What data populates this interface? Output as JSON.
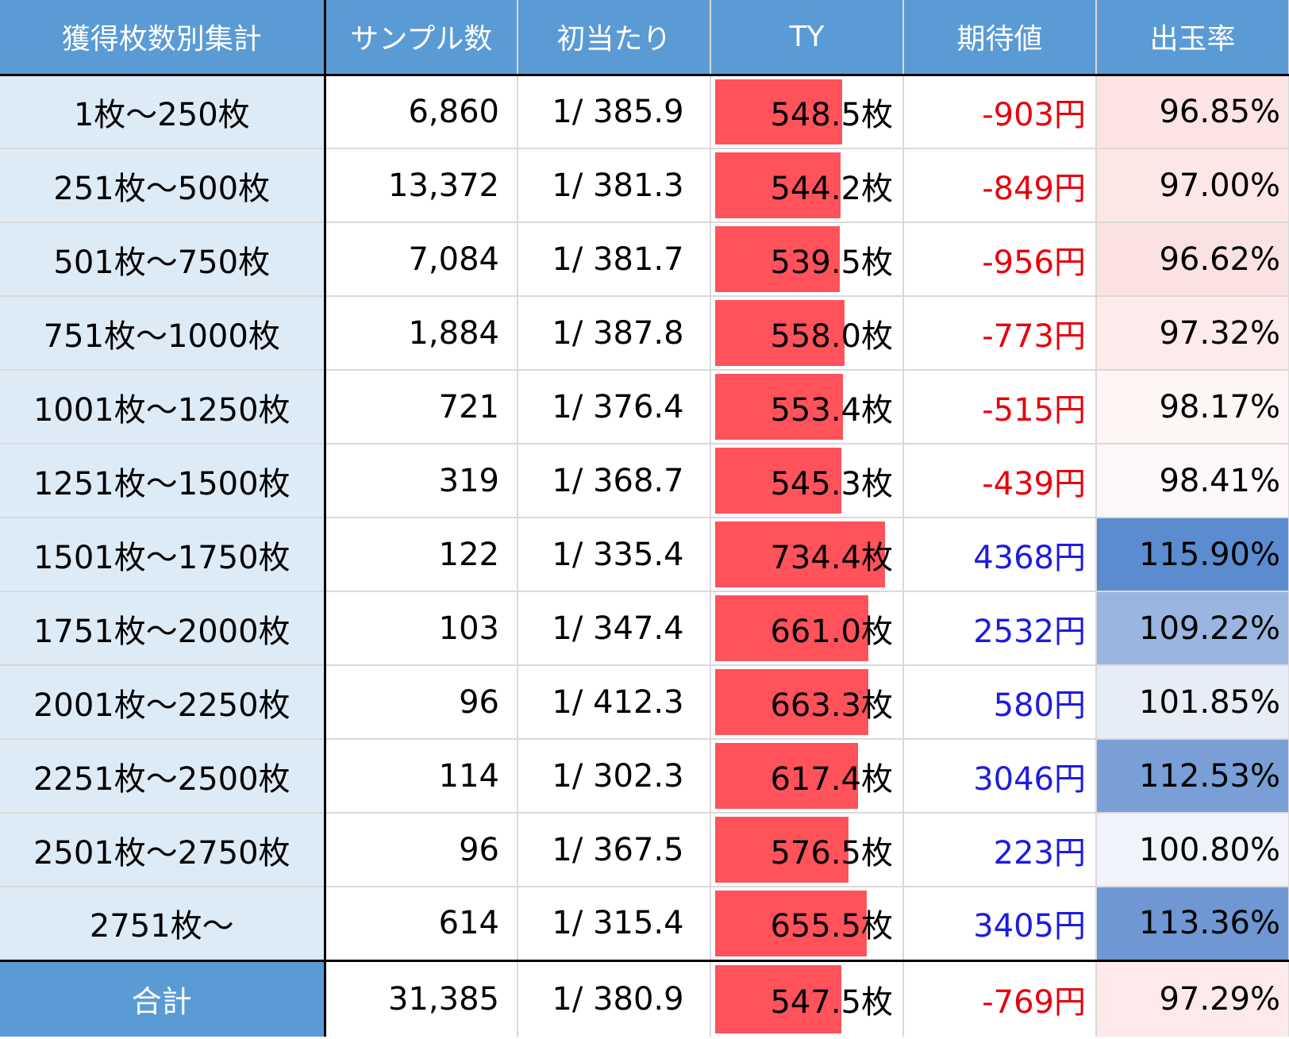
{
  "table": {
    "headers": [
      "獲得枚数別集計",
      "サンプル数",
      "初当たり",
      "TY",
      "期待値",
      "出玉率"
    ],
    "rows": [
      {
        "range": "1枚～250枚",
        "samples": "6,860",
        "first_hit": "1/ 385.9",
        "ty": "548.5枚",
        "ty_value": 548.5,
        "ev": "-903円",
        "rate": "96.85%",
        "ev_color": "#e8000b",
        "rate_bg": "#fce4e4"
      },
      {
        "range": "251枚～500枚",
        "samples": "13,372",
        "first_hit": "1/ 381.3",
        "ty": "544.2枚",
        "ty_value": 544.2,
        "ev": "-849円",
        "rate": "97.00%",
        "ev_color": "#e8000b",
        "rate_bg": "#fce6e6"
      },
      {
        "range": "501枚～750枚",
        "samples": "7,084",
        "first_hit": "1/ 381.7",
        "ty": "539.5枚",
        "ty_value": 539.5,
        "ev": "-956円",
        "rate": "96.62%",
        "ev_color": "#e8000b",
        "rate_bg": "#fbe2e2"
      },
      {
        "range": "751枚～1000枚",
        "samples": "1,884",
        "first_hit": "1/ 387.8",
        "ty": "558.0枚",
        "ty_value": 558.0,
        "ev": "-773円",
        "rate": "97.32%",
        "ev_color": "#e8000b",
        "rate_bg": "#fdeaea"
      },
      {
        "range": "1001枚～1250枚",
        "samples": "721",
        "first_hit": "1/ 376.4",
        "ty": "553.4枚",
        "ty_value": 553.4,
        "ev": "-515円",
        "rate": "98.17%",
        "ev_color": "#e8000b",
        "rate_bg": "#fef5f5"
      },
      {
        "range": "1251枚～1500枚",
        "samples": "319",
        "first_hit": "1/ 368.7",
        "ty": "545.3枚",
        "ty_value": 545.3,
        "ev": "-439円",
        "rate": "98.41%",
        "ev_color": "#e8000b",
        "rate_bg": "#fef8f8"
      },
      {
        "range": "1501枚～1750枚",
        "samples": "122",
        "first_hit": "1/ 335.4",
        "ty": "734.4枚",
        "ty_value": 734.4,
        "ev": "4368円",
        "rate": "115.90%",
        "ev_color": "#1c1ce0",
        "rate_bg": "#5b8ccf"
      },
      {
        "range": "1751枚～2000枚",
        "samples": "103",
        "first_hit": "1/ 347.4",
        "ty": "661.0枚",
        "ty_value": 661.0,
        "ev": "2532円",
        "rate": "109.22%",
        "ev_color": "#1c1ce0",
        "rate_bg": "#9ab6e0"
      },
      {
        "range": "2001枚～2250枚",
        "samples": "96",
        "first_hit": "1/ 412.3",
        "ty": "663.3枚",
        "ty_value": 663.3,
        "ev": "580円",
        "rate": "101.85%",
        "ev_color": "#1c1ce0",
        "rate_bg": "#e6edf7"
      },
      {
        "range": "2251枚～2500枚",
        "samples": "114",
        "first_hit": "1/ 302.3",
        "ty": "617.4枚",
        "ty_value": 617.4,
        "ev": "3046円",
        "rate": "112.53%",
        "ev_color": "#1c1ce0",
        "rate_bg": "#799fd6"
      },
      {
        "range": "2501枚～2750枚",
        "samples": "96",
        "first_hit": "1/ 367.5",
        "ty": "576.5枚",
        "ty_value": 576.5,
        "ev": "223円",
        "rate": "100.80%",
        "ev_color": "#1c1ce0",
        "rate_bg": "#f0f3f9"
      },
      {
        "range": "2751枚～",
        "samples": "614",
        "first_hit": "1/ 315.4",
        "ty": "655.5枚",
        "ty_value": 655.5,
        "ev": "3405円",
        "rate": "113.36%",
        "ev_color": "#1c1ce0",
        "rate_bg": "#6e97d3"
      }
    ],
    "total": {
      "range": "合計",
      "samples": "31,385",
      "first_hit": "1/ 380.9",
      "ty": "547.5枚",
      "ty_value": 547.5,
      "ev": "-769円",
      "rate": "97.29%",
      "ev_color": "#e8000b",
      "rate_bg": "#fde9e9"
    },
    "ty_bar_max": 800
  }
}
